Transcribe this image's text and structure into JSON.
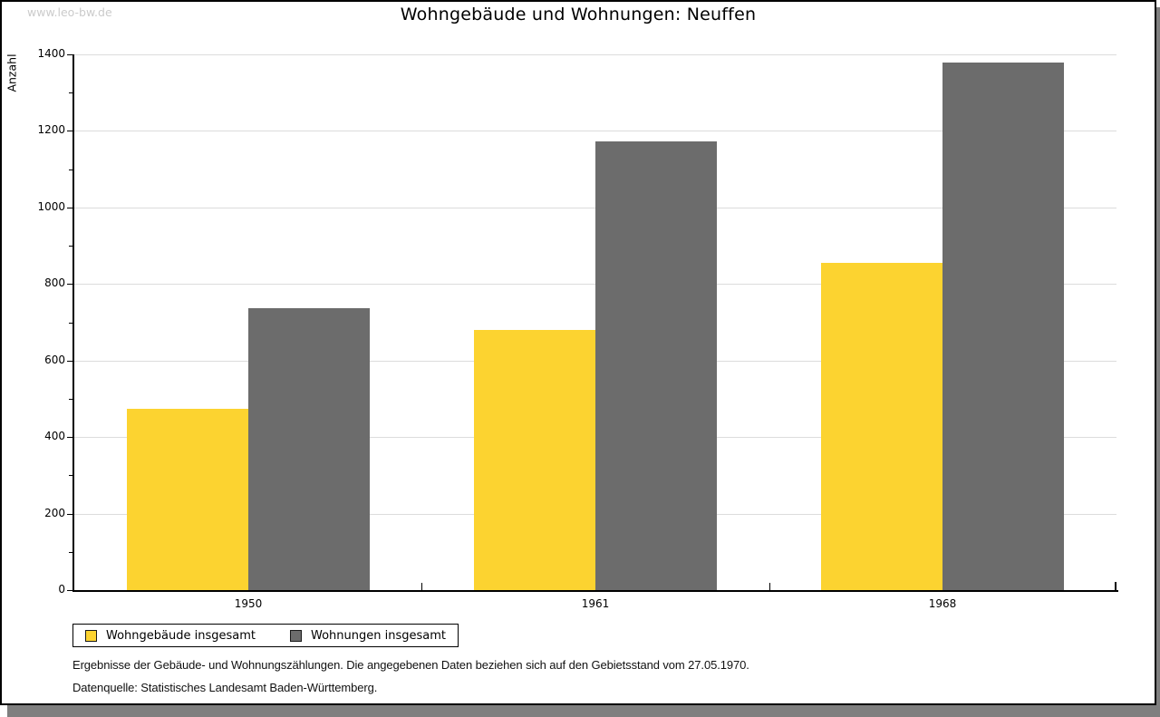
{
  "watermark": "www.leo-bw.de",
  "title": "Wohngebäude und Wohnungen: Neuffen",
  "chart_data": {
    "type": "bar",
    "title": "Wohngebäude und Wohnungen: Neuffen",
    "ylabel": "Anzahl",
    "xlabel": "",
    "categories": [
      "1950",
      "1961",
      "1968"
    ],
    "series": [
      {
        "name": "Wohngebäude insgesamt",
        "slug": "wohngebaeude-insgesamt",
        "color": "#FCD330",
        "values": [
          473,
          680,
          855
        ]
      },
      {
        "name": "Wohnungen insgesamt",
        "slug": "wohnungen-insgesamt",
        "color": "#6C6C6C",
        "values": [
          737,
          1173,
          1378
        ]
      }
    ],
    "ylim": [
      0,
      1400
    ],
    "ytick_step": 200,
    "yminor_step": 100,
    "grid": true,
    "legend_position": "bottom-left"
  },
  "footer": {
    "note": "Ergebnisse der Gebäude- und Wohnungszählungen. Die angegebenen Daten beziehen sich auf den Gebietsstand vom 27.05.1970.",
    "source": "Datenquelle: Statistisches Landesamt Baden-Württemberg."
  }
}
